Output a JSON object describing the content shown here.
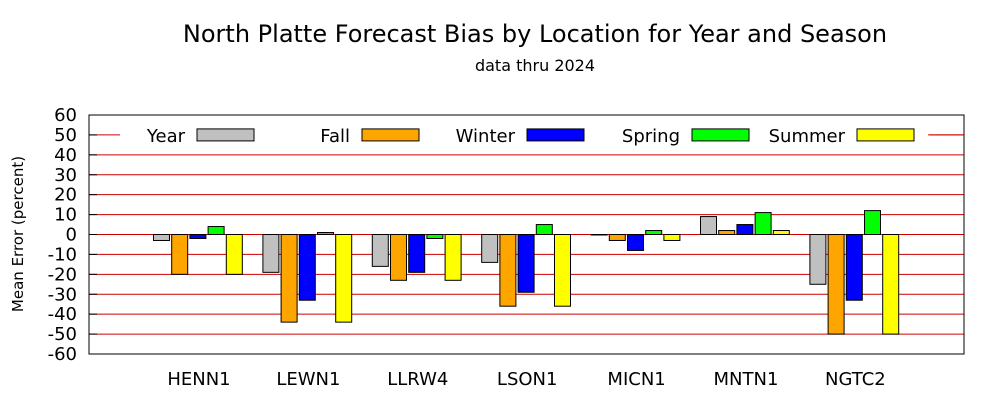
{
  "chart_data": {
    "type": "bar",
    "title": "North Platte Forecast Bias by Location for Year and Season",
    "subtitle": "data thru 2024",
    "xlabel": "",
    "ylabel": "Mean Error (percent)",
    "ylim": [
      -60,
      60
    ],
    "yticks": [
      60,
      50,
      40,
      30,
      20,
      10,
      0,
      -10,
      -20,
      -30,
      -40,
      -50,
      -60
    ],
    "grid": true,
    "legend_position": "top",
    "categories": [
      "HENN1",
      "LEWN1",
      "LLRW4",
      "LSON1",
      "MICN1",
      "MNTN1",
      "NGTC2"
    ],
    "series": [
      {
        "name": "Year",
        "color": "#c0c0c0",
        "values": [
          -3,
          -19,
          -16,
          -14,
          0,
          9,
          -25
        ]
      },
      {
        "name": "Fall",
        "color": "#ffa500",
        "values": [
          -20,
          -44,
          -23,
          -36,
          -3,
          2,
          -50
        ]
      },
      {
        "name": "Winter",
        "color": "#0000ff",
        "values": [
          -2,
          -33,
          -19,
          -29,
          -8,
          5,
          -33
        ]
      },
      {
        "name": "Spring",
        "color": "#00ff00",
        "values": [
          4,
          1,
          -2,
          5,
          2,
          11,
          12
        ]
      },
      {
        "name": "Summer",
        "color": "#ffff00",
        "values": [
          -20,
          -44,
          -23,
          -36,
          -3,
          2,
          -50
        ]
      }
    ],
    "colors": {
      "gridline": "#cc0000",
      "bar_stroke": "#000000"
    }
  }
}
